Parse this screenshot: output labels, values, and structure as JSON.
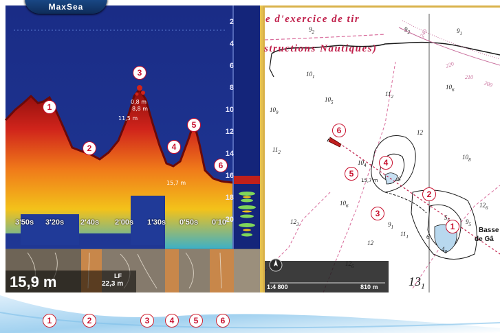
{
  "app": {
    "logo_text": "MaxSea"
  },
  "echogram": {
    "depth_scale": [
      "2",
      "4",
      "6",
      "8",
      "10",
      "12",
      "14",
      "16",
      "18",
      "20"
    ],
    "time_scale": [
      "3'50s",
      "3'20s",
      "2'40s",
      "2'00s",
      "1'30s",
      "0'50s",
      "0'10"
    ],
    "current_depth": "15,9 m",
    "frequency_label": "LF",
    "frequency_depth": "22,3 m",
    "peak_labels": {
      "peak_top": "0,8 m",
      "peak_mid": "8,8 m",
      "peak_lower": "11,5 m",
      "right_depth": "15,7 m"
    },
    "callouts": [
      "1",
      "2",
      "3",
      "4",
      "5",
      "6"
    ]
  },
  "chart": {
    "title_line_1": "e d'exercice de tir",
    "title_line_2": "structions Nautiques)",
    "soundings": {
      "s1": [
        "9",
        "2"
      ],
      "s2": [
        "9",
        "2"
      ],
      "s3": [
        "9",
        "1"
      ],
      "s4": [
        "10",
        "1"
      ],
      "s5": [
        "10",
        "5"
      ],
      "s6": [
        "11",
        "2"
      ],
      "s7": [
        "10",
        "9"
      ],
      "s8": [
        "11",
        "2"
      ],
      "s9": [
        "10",
        "6"
      ],
      "s10": [
        "12",
        ""
      ],
      "s11": [
        "10",
        "8"
      ],
      "s12": [
        "10",
        "4"
      ],
      "s13": [
        "10",
        "6"
      ],
      "s14": [
        "12",
        "3"
      ],
      "s15": [
        "9",
        "1"
      ],
      "s16": [
        "11",
        "1"
      ],
      "s17": [
        "12",
        ""
      ],
      "s18": [
        "12",
        "6"
      ],
      "s19": [
        "12",
        "6"
      ],
      "s20": [
        "9",
        "5"
      ],
      "s21": [
        "4",
        "8"
      ],
      "s22": [
        "5",
        "6"
      ],
      "s23": [
        "6",
        ""
      ],
      "s24": [
        "6",
        ""
      ]
    },
    "boat_depth": "15,7 m",
    "place_name_1": "Basse",
    "place_name_2": "de Gâ",
    "compass_ticks": [
      "240",
      "220",
      "210",
      "200"
    ],
    "scale_ratio": "1:4 800",
    "scale_distance": "810 m",
    "big_sounding": [
      "13",
      "1"
    ],
    "callouts": [
      "1",
      "2",
      "3",
      "4",
      "5",
      "6"
    ]
  },
  "bottom_callouts": [
    "1",
    "2",
    "3",
    "4",
    "5",
    "6"
  ],
  "colors": {
    "callout_border": "#c8102e",
    "sonar_bg": "#1c2f8a",
    "chart_bg": "#ffffff",
    "accent_red": "#c01f4a"
  }
}
